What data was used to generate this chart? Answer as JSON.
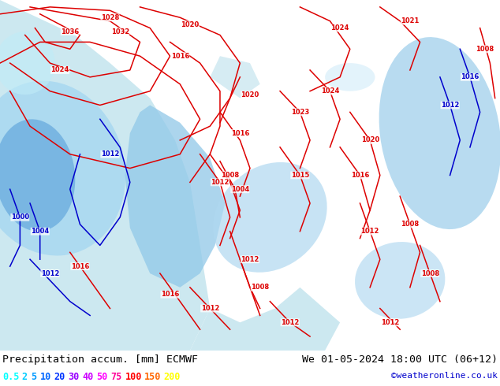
{
  "title_left": "Precipitation accum. [mm] ECMWF",
  "title_right": "We 01-05-2024 18:00 UTC (06+12)",
  "credit": "©weatheronline.co.uk",
  "legend_values": [
    "0.5",
    "2",
    "5",
    "10",
    "20",
    "30",
    "40",
    "50",
    "75",
    "100",
    "150",
    "200"
  ],
  "legend_colors": [
    "#00ffff",
    "#00ccff",
    "#0099ff",
    "#0066ff",
    "#0033ff",
    "#9900ff",
    "#cc00ff",
    "#ff00ff",
    "#ff0099",
    "#ff0000",
    "#ff6600",
    "#ffff00"
  ],
  "bg_color": "#ffffff",
  "land_color": "#c8dfa0",
  "sea_color": "#cce8f0",
  "precip_light": "#aad4f0",
  "precip_mid": "#80b8e8",
  "precip_dark": "#5090d0",
  "isobar_color_red": "#dd0000",
  "isobar_color_blue": "#0000cc",
  "text_color": "#000000",
  "title_fontsize": 9.5,
  "legend_fontsize": 8.5,
  "credit_color": "#0000cc",
  "credit_fontsize": 8
}
